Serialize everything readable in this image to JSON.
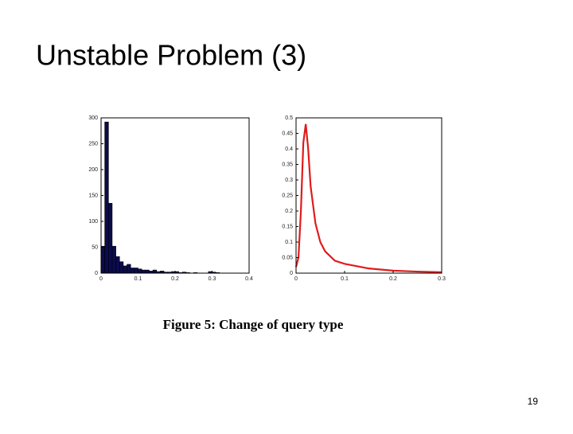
{
  "title": "Unstable Problem (3)",
  "caption": "Figure 5: Change of query type",
  "page_number": "19",
  "chart_data": [
    {
      "type": "histogram",
      "color": "#0b0b4d",
      "bins": [
        0,
        0.01,
        0.02,
        0.03,
        0.04,
        0.05,
        0.06,
        0.07,
        0.08,
        0.09,
        0.1,
        0.11,
        0.12,
        0.13,
        0.14,
        0.15,
        0.16,
        0.17,
        0.18,
        0.19,
        0.2,
        0.21,
        0.22,
        0.23,
        0.24,
        0.25,
        0.26,
        0.27,
        0.28,
        0.29,
        0.3,
        0.31,
        0.32
      ],
      "counts": [
        52,
        292,
        135,
        52,
        32,
        22,
        14,
        17,
        10,
        10,
        8,
        6,
        6,
        4,
        6,
        3,
        4,
        2,
        2,
        3,
        3,
        1,
        2,
        1,
        0,
        1,
        0,
        0,
        0,
        3,
        2,
        1
      ],
      "xlim": [
        0,
        0.4
      ],
      "xticks": [
        0,
        0.1,
        0.2,
        0.3,
        0.4
      ],
      "ylim": [
        0,
        300
      ],
      "yticks": [
        0,
        50,
        100,
        150,
        200,
        250,
        300
      ]
    },
    {
      "type": "line",
      "color": "#e01b1b",
      "x": [
        0,
        0.005,
        0.01,
        0.015,
        0.02,
        0.025,
        0.03,
        0.04,
        0.05,
        0.06,
        0.08,
        0.1,
        0.15,
        0.2,
        0.25,
        0.3
      ],
      "values": [
        0.02,
        0.05,
        0.2,
        0.42,
        0.48,
        0.4,
        0.28,
        0.16,
        0.1,
        0.07,
        0.04,
        0.03,
        0.015,
        0.008,
        0.005,
        0.003
      ],
      "xlim": [
        0,
        0.3
      ],
      "xticks": [
        0,
        0.1,
        0.2,
        0.3
      ],
      "ylim": [
        0,
        0.5
      ],
      "yticks": [
        0,
        0.05,
        0.1,
        0.15,
        0.2,
        0.25,
        0.3,
        0.35,
        0.4,
        0.45,
        0.5
      ]
    }
  ]
}
